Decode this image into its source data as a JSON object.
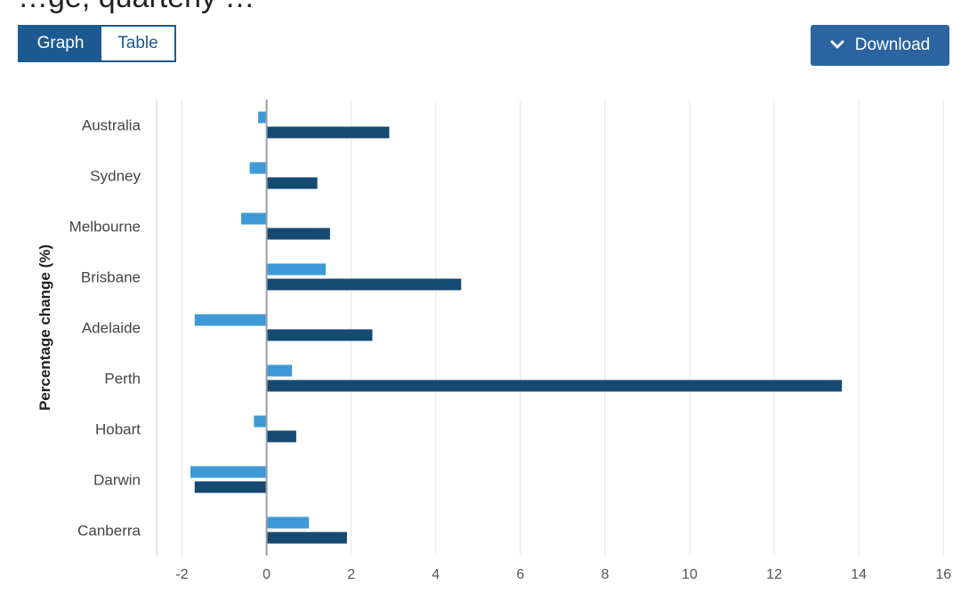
{
  "header": {
    "title": "…ge, quarterly …",
    "view_toggle": {
      "graph_label": "Graph",
      "table_label": "Table",
      "active": "Graph"
    },
    "download_label": "Download",
    "download_icon": "chevron-down-icon"
  },
  "colors": {
    "series_light": "#3d9ad6",
    "series_dark": "#154a72",
    "accent": "#2b64a0"
  },
  "chart_data": {
    "type": "bar",
    "orientation": "horizontal",
    "title": "",
    "xlabel": "",
    "ylabel": "Percentage change (%)",
    "categories": [
      "Australia",
      "Sydney",
      "Melbourne",
      "Brisbane",
      "Adelaide",
      "Perth",
      "Hobart",
      "Darwin",
      "Canberra"
    ],
    "series": [
      {
        "color": "#3d9ad6",
        "values": [
          -0.2,
          -0.4,
          -0.6,
          1.4,
          -1.7,
          0.6,
          -0.3,
          -1.8,
          1.0
        ]
      },
      {
        "color": "#154a72",
        "values": [
          2.9,
          1.2,
          1.5,
          4.6,
          2.5,
          13.6,
          0.7,
          -1.7,
          1.9
        ]
      }
    ],
    "xlim": [
      -2.6,
      16.1
    ],
    "xticks": [
      -2,
      0,
      2,
      4,
      6,
      8,
      10,
      12,
      14,
      16
    ],
    "grid": true,
    "legend": "none"
  }
}
